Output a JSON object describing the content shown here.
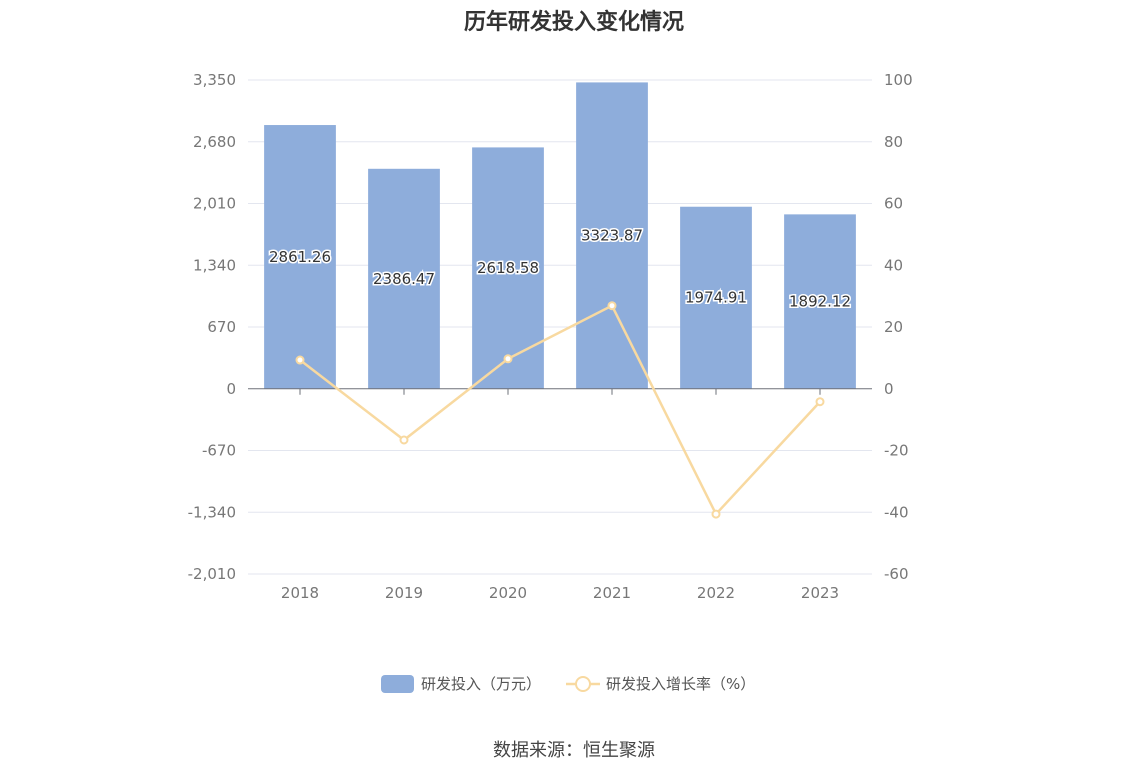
{
  "chart_data": {
    "type": "bar",
    "title": "历年研发投入变化情况",
    "categories": [
      "2018",
      "2019",
      "2020",
      "2021",
      "2022",
      "2023"
    ],
    "series": [
      {
        "name": "研发投入（万元）",
        "type": "bar",
        "axis": "left",
        "color": "#8eaddb",
        "values": [
          2861.26,
          2386.47,
          2618.58,
          3323.87,
          1974.91,
          1892.12
        ],
        "labels": [
          "2861.26",
          "2386.47",
          "2618.58",
          "3323.87",
          "1974.91",
          "1892.12"
        ]
      },
      {
        "name": "研发投入增长率（%）",
        "type": "line",
        "axis": "right",
        "color": "#f8d9a0",
        "values": [
          9.3,
          -16.6,
          9.7,
          26.9,
          -40.6,
          -4.2
        ]
      }
    ],
    "y_left": {
      "ylim": [
        -2010,
        3350
      ],
      "ticks": [
        3350,
        2680,
        2010,
        1340,
        670,
        0,
        -670,
        -1340,
        -2010
      ],
      "tick_labels": [
        "3,350",
        "2,680",
        "2,010",
        "1,340",
        "670",
        "0",
        "-670",
        "-1,340",
        "-2,010"
      ]
    },
    "y_right": {
      "ylim": [
        -60,
        100
      ],
      "ticks": [
        100,
        80,
        60,
        40,
        20,
        0,
        -20,
        -40,
        -60
      ],
      "tick_labels": [
        "100",
        "80",
        "60",
        "40",
        "20",
        "0",
        "-20",
        "-40",
        "-60"
      ]
    },
    "grid": true,
    "legend_position": "bottom"
  },
  "source_text": "数据来源：恒生聚源"
}
